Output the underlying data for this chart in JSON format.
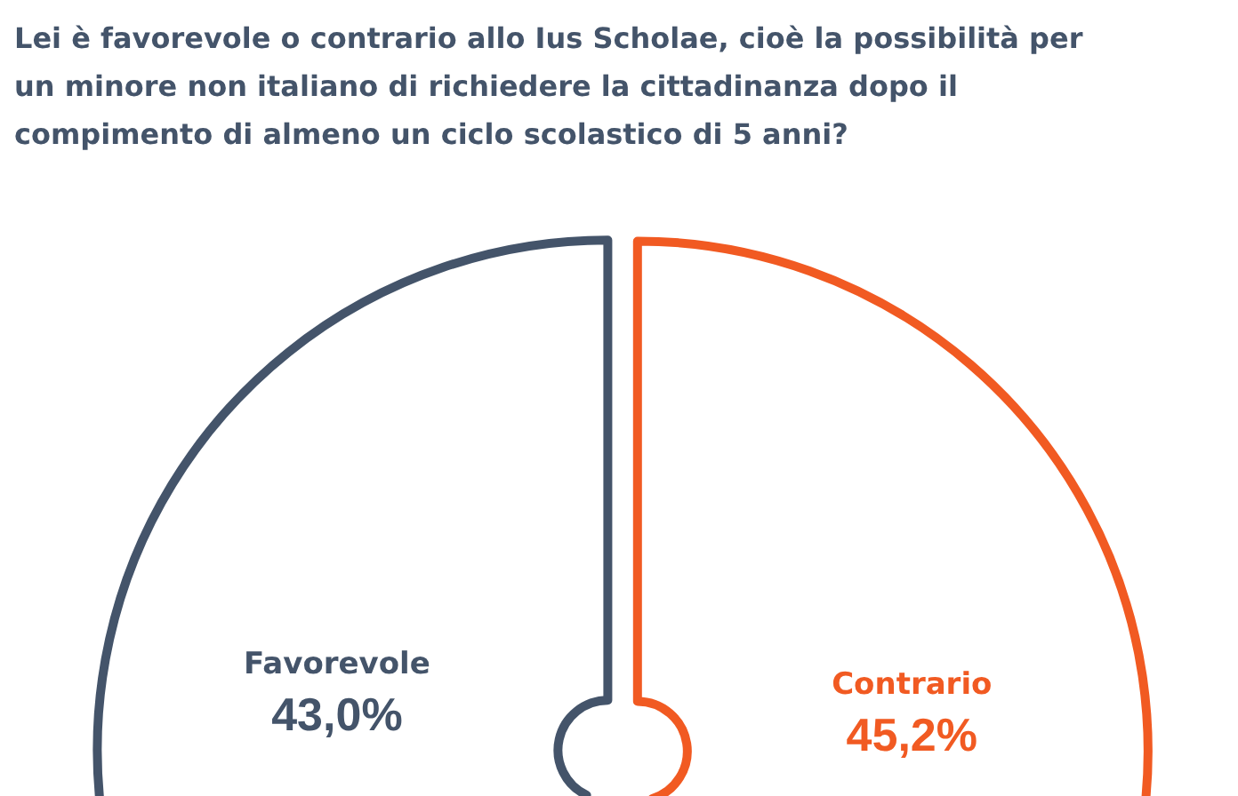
{
  "chart_data": {
    "type": "pie",
    "title": "Lei è favorevole o contrario allo Ius Scholae, cioè la possibilità per un minore non italiano di richiedere la cittadinanza dopo il compimento di almeno un ciclo scolastico di 5 anni?",
    "categories": [
      "Favorevole",
      "Contrario"
    ],
    "values": [
      43.0,
      45.2
    ],
    "colors": [
      "#44546a",
      "#f15a22"
    ],
    "value_labels": [
      "43,0%",
      "45,2%"
    ]
  }
}
